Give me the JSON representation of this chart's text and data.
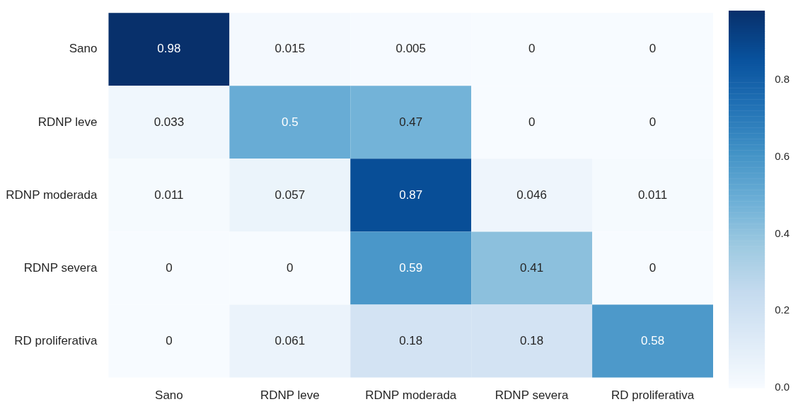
{
  "chart_data": {
    "type": "heatmap",
    "categories": [
      "Sano",
      "RDNP leve",
      "RDNP moderada",
      "RDNP severa",
      "RD proliferativa"
    ],
    "y_categories": [
      "Sano",
      "RDNP leve",
      "RDNP moderada",
      "RDNP severa",
      "RD proliferativa"
    ],
    "cells": [
      [
        0.98,
        0.015,
        0.005,
        0,
        0
      ],
      [
        0.033,
        0.5,
        0.47,
        0,
        0
      ],
      [
        0.011,
        0.057,
        0.87,
        0.046,
        0.011
      ],
      [
        0,
        0,
        0.59,
        0.41,
        0
      ],
      [
        0,
        0.061,
        0.18,
        0.18,
        0.58
      ]
    ],
    "data_labels": true,
    "clim": [
      0,
      0.98
    ],
    "cticks": [
      {
        "value": 0,
        "label": "0.0"
      },
      {
        "value": 0.2,
        "label": "0.2"
      },
      {
        "value": 0.4,
        "label": "0.4"
      },
      {
        "value": 0.6,
        "label": "0.6"
      },
      {
        "value": 0.8,
        "label": "0.8"
      }
    ]
  }
}
